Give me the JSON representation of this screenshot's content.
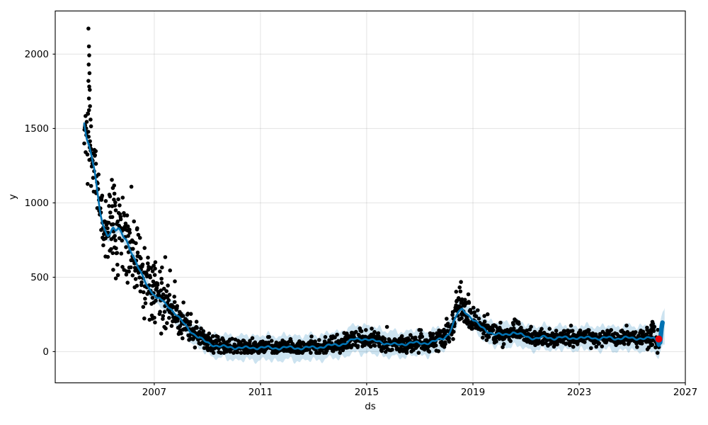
{
  "figure": {
    "background": "#ffffff"
  },
  "chart_data": {
    "type": "scatter",
    "subtype": "prophet-forecast (observed scatter + forecast line + uncertainty band)",
    "title": "",
    "xlabel": "ds",
    "ylabel": "y",
    "legend": false,
    "grid": true,
    "xlim_years": [
      2003.27,
      2027.0
    ],
    "ylim": [
      -210,
      2290
    ],
    "x_ticks": [
      {
        "year": 2007,
        "label": "2007"
      },
      {
        "year": 2011,
        "label": "2011"
      },
      {
        "year": 2015,
        "label": "2015"
      },
      {
        "year": 2019,
        "label": "2019"
      },
      {
        "year": 2023,
        "label": "2023"
      },
      {
        "year": 2027,
        "label": "2027"
      }
    ],
    "y_ticks": [
      {
        "value": 0,
        "label": "0"
      },
      {
        "value": 500,
        "label": "500"
      },
      {
        "value": 1000,
        "label": "1000"
      },
      {
        "value": 1500,
        "label": "1500"
      },
      {
        "value": 2000,
        "label": "2000"
      }
    ],
    "colors": {
      "observed": "#000000",
      "forecast_line": "#0072b2",
      "uncertainty_band": "rgba(0,114,178,0.2)",
      "anomaly": "#e8000b",
      "grid": "rgba(128,128,128,0.22)",
      "spine": "#000000"
    },
    "forecast_trend": [
      [
        2004.36,
        1540
      ],
      [
        2004.45,
        1445
      ],
      [
        2004.55,
        1385
      ],
      [
        2004.65,
        1305
      ],
      [
        2004.75,
        1220
      ],
      [
        2004.85,
        1075
      ],
      [
        2004.95,
        945
      ],
      [
        2005.05,
        860
      ],
      [
        2005.15,
        812
      ],
      [
        2005.25,
        785
      ],
      [
        2005.35,
        802
      ],
      [
        2005.45,
        832
      ],
      [
        2005.55,
        812
      ],
      [
        2005.65,
        822
      ],
      [
        2005.75,
        800
      ],
      [
        2005.85,
        772
      ],
      [
        2005.95,
        752
      ],
      [
        2006.1,
        688
      ],
      [
        2006.25,
        622
      ],
      [
        2006.4,
        560
      ],
      [
        2006.55,
        508
      ],
      [
        2006.7,
        458
      ],
      [
        2006.85,
        415
      ],
      [
        2007.0,
        385
      ],
      [
        2007.1,
        352
      ],
      [
        2007.2,
        358
      ],
      [
        2007.35,
        330
      ],
      [
        2007.5,
        310
      ],
      [
        2007.65,
        285
      ],
      [
        2007.8,
        255
      ],
      [
        2007.95,
        222
      ],
      [
        2008.1,
        190
      ],
      [
        2008.3,
        150
      ],
      [
        2008.5,
        118
      ],
      [
        2008.7,
        92
      ],
      [
        2008.9,
        68
      ],
      [
        2009.1,
        52
      ],
      [
        2009.4,
        38
      ],
      [
        2009.7,
        30
      ],
      [
        2010.0,
        28
      ],
      [
        2010.5,
        24
      ],
      [
        2011.0,
        28
      ],
      [
        2011.5,
        24
      ],
      [
        2012.0,
        27
      ],
      [
        2012.5,
        24
      ],
      [
        2013.0,
        28
      ],
      [
        2013.3,
        32
      ],
      [
        2013.6,
        40
      ],
      [
        2013.9,
        46
      ],
      [
        2014.2,
        56
      ],
      [
        2014.5,
        80
      ],
      [
        2014.75,
        88
      ],
      [
        2015.0,
        84
      ],
      [
        2015.2,
        72
      ],
      [
        2015.5,
        68
      ],
      [
        2015.8,
        52
      ],
      [
        2016.1,
        46
      ],
      [
        2016.4,
        52
      ],
      [
        2016.7,
        60
      ],
      [
        2017.0,
        55
      ],
      [
        2017.3,
        60
      ],
      [
        2017.6,
        70
      ],
      [
        2017.9,
        90
      ],
      [
        2018.1,
        125
      ],
      [
        2018.3,
        205
      ],
      [
        2018.45,
        265
      ],
      [
        2018.6,
        282
      ],
      [
        2018.75,
        262
      ],
      [
        2018.9,
        235
      ],
      [
        2019.1,
        200
      ],
      [
        2019.3,
        165
      ],
      [
        2019.5,
        142
      ],
      [
        2019.7,
        126
      ],
      [
        2019.9,
        116
      ],
      [
        2020.1,
        110
      ],
      [
        2020.3,
        116
      ],
      [
        2020.5,
        132
      ],
      [
        2020.7,
        120
      ],
      [
        2020.9,
        105
      ],
      [
        2021.1,
        96
      ],
      [
        2021.4,
        90
      ],
      [
        2021.7,
        96
      ],
      [
        2022.0,
        90
      ],
      [
        2022.3,
        96
      ],
      [
        2022.6,
        88
      ],
      [
        2022.9,
        95
      ],
      [
        2023.2,
        90
      ],
      [
        2023.5,
        95
      ],
      [
        2023.8,
        88
      ],
      [
        2024.1,
        93
      ],
      [
        2024.4,
        88
      ],
      [
        2024.7,
        93
      ],
      [
        2025.0,
        88
      ],
      [
        2025.3,
        91
      ],
      [
        2025.6,
        87
      ],
      [
        2025.8,
        92
      ],
      [
        2025.92,
        72
      ],
      [
        2025.97,
        52
      ],
      [
        2026.0,
        48
      ],
      [
        2026.08,
        120
      ],
      [
        2026.15,
        165
      ],
      [
        2026.22,
        175
      ]
    ],
    "trend_draw_end": 2026.0,
    "forecast_final_segment": [
      [
        2026.0,
        48
      ],
      [
        2026.03,
        75
      ],
      [
        2026.05,
        62
      ],
      [
        2026.08,
        118
      ],
      [
        2026.1,
        152
      ],
      [
        2026.12,
        178
      ],
      [
        2026.14,
        195
      ]
    ],
    "band_half_width": [
      [
        2004.36,
        28
      ],
      [
        2005.0,
        34
      ],
      [
        2006.0,
        40
      ],
      [
        2007.0,
        48
      ],
      [
        2008.0,
        62
      ],
      [
        2009.0,
        76
      ],
      [
        2010.0,
        82
      ],
      [
        2011.0,
        84
      ],
      [
        2012.0,
        84
      ],
      [
        2013.0,
        85
      ],
      [
        2014.0,
        88
      ],
      [
        2014.8,
        95
      ],
      [
        2016.0,
        85
      ],
      [
        2017.0,
        85
      ],
      [
        2018.0,
        78
      ],
      [
        2018.6,
        70
      ],
      [
        2019.5,
        78
      ],
      [
        2020.5,
        85
      ],
      [
        2021.5,
        80
      ],
      [
        2022.5,
        80
      ],
      [
        2023.5,
        80
      ],
      [
        2024.5,
        82
      ],
      [
        2025.5,
        85
      ],
      [
        2025.95,
        92
      ],
      [
        2026.1,
        110
      ],
      [
        2026.22,
        132
      ]
    ],
    "trend_wiggle": {
      "a1": 7,
      "p1": 0.8,
      "f1": 1.2,
      "a2": 4.5,
      "p2": 0.28,
      "f2": 0.3
    },
    "band_wiggle_upper": {
      "a1": 11,
      "p1": 0.52,
      "f1": 2.0,
      "a2": 8,
      "p2": 0.2,
      "f2": 5.1
    },
    "band_wiggle_lower": {
      "a1": 11,
      "p1": 0.5,
      "f1": 0.6,
      "a2": 8,
      "p2": 0.21,
      "f2": 3.4
    },
    "band_x_end": 2026.22,
    "observed_generator": {
      "seed": 20,
      "n": 1800,
      "x_start": 2004.36,
      "x_end": 2026.0,
      "skew_prob": 0.05,
      "skew_mult": 1.3,
      "clamp_min": -8,
      "clamp_max": 2185,
      "sigma_profile": [
        [
          2004.4,
          118
        ],
        [
          2004.8,
          108
        ],
        [
          2005.1,
          88
        ],
        [
          2005.5,
          168
        ],
        [
          2005.8,
          128
        ],
        [
          2006.2,
          112
        ],
        [
          2006.6,
          100
        ],
        [
          2007.0,
          112
        ],
        [
          2007.4,
          88
        ],
        [
          2007.8,
          68
        ],
        [
          2008.2,
          52
        ],
        [
          2008.8,
          34
        ],
        [
          2009.5,
          26
        ],
        [
          2010.5,
          21
        ],
        [
          2012.0,
          21
        ],
        [
          2013.5,
          24
        ],
        [
          2014.5,
          33
        ],
        [
          2015.5,
          29
        ],
        [
          2016.5,
          26
        ],
        [
          2017.5,
          31
        ],
        [
          2018.2,
          46
        ],
        [
          2018.6,
          58
        ],
        [
          2019.2,
          40
        ],
        [
          2020.0,
          30
        ],
        [
          2020.6,
          37
        ],
        [
          2021.5,
          25
        ],
        [
          2023.0,
          25
        ],
        [
          2024.5,
          25
        ],
        [
          2025.4,
          28
        ],
        [
          2026.0,
          44
        ]
      ]
    },
    "observed_outliers": [
      [
        2004.52,
        2172
      ],
      [
        2004.54,
        2052
      ],
      [
        2004.55,
        1992
      ],
      [
        2004.53,
        1930
      ],
      [
        2004.56,
        1872
      ],
      [
        2004.52,
        1820
      ],
      [
        2004.55,
        1782
      ],
      [
        2004.57,
        1760
      ],
      [
        2004.54,
        1702
      ],
      [
        2004.58,
        1650
      ],
      [
        2004.5,
        1602
      ],
      [
        2004.6,
        1560
      ],
      [
        2004.62,
        1515
      ],
      [
        2005.44,
        1100
      ],
      [
        2005.5,
        1062
      ],
      [
        2005.48,
        1022
      ],
      [
        2005.52,
        982
      ],
      [
        2005.55,
        950
      ],
      [
        2005.42,
        905
      ],
      [
        2006.35,
        822
      ],
      [
        2006.4,
        785
      ],
      [
        2006.98,
        578
      ],
      [
        2007.03,
        558
      ],
      [
        2006.94,
        540
      ],
      [
        2007.28,
        462
      ],
      [
        2018.55,
        468
      ],
      [
        2018.5,
        432
      ],
      [
        2018.53,
        405
      ],
      [
        2025.72,
        178
      ],
      [
        2025.75,
        160
      ],
      [
        2025.7,
        145
      ],
      [
        2025.78,
        188
      ],
      [
        2025.8,
        170
      ],
      [
        2025.76,
        200
      ]
    ],
    "anomalies": [
      [
        2026.0,
        85
      ]
    ]
  }
}
